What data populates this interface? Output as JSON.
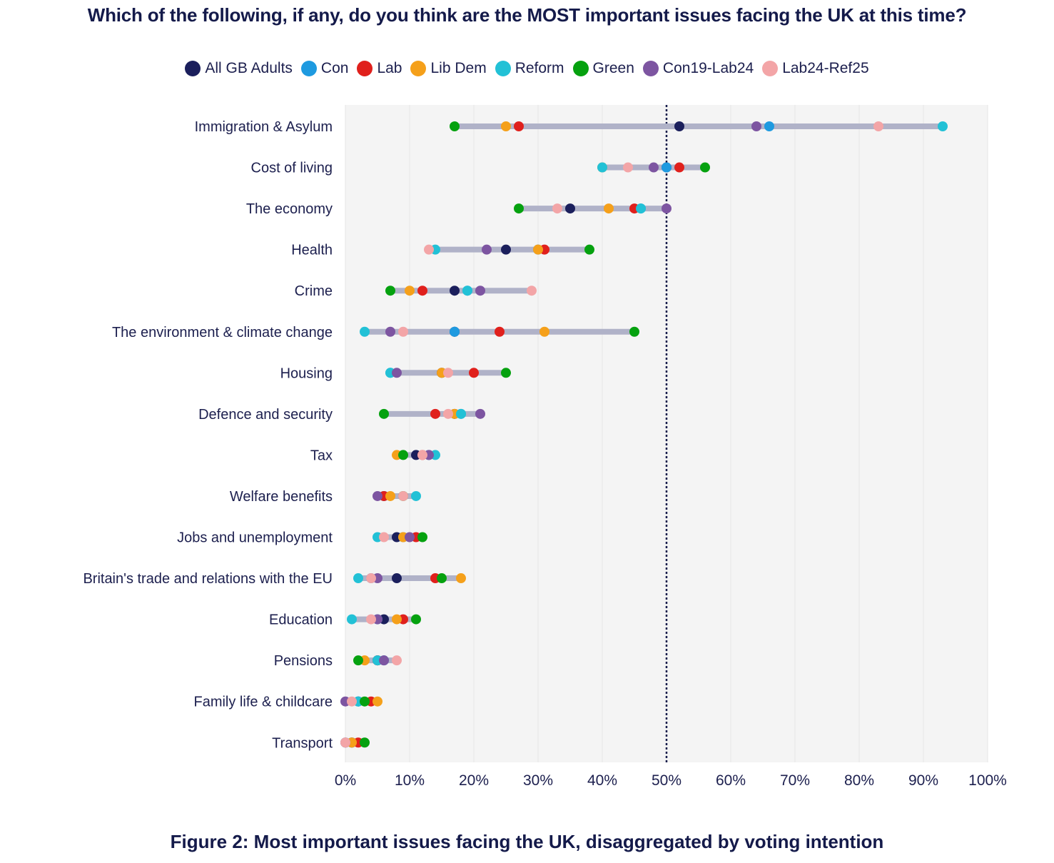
{
  "chart_data": {
    "type": "scatter",
    "title": "Which of the following, if any, do you think are the MOST important issues facing the UK at this time?",
    "caption": "Figure 2: Most important issues facing the UK, disaggregated by voting intention",
    "xlim": [
      0,
      100
    ],
    "xticks": [
      0,
      10,
      20,
      30,
      40,
      50,
      60,
      70,
      80,
      90,
      100
    ],
    "tick_format": "%",
    "reference_line": 50,
    "grid": true,
    "legend_position": "top",
    "series": [
      {
        "name": "All GB Adults",
        "color": "#1b1f5c"
      },
      {
        "name": "Con",
        "color": "#1e9ae0"
      },
      {
        "name": "Lab",
        "color": "#e0201c"
      },
      {
        "name": "Lib Dem",
        "color": "#f5a01a"
      },
      {
        "name": "Reform",
        "color": "#22c1d6"
      },
      {
        "name": "Green",
        "color": "#05a10f"
      },
      {
        "name": "Con19-Lab24",
        "color": "#7d55a1"
      },
      {
        "name": "Lab24-Ref25",
        "color": "#f3a5a7"
      }
    ],
    "categories": [
      "Immigration & Asylum",
      "Cost of living",
      "The economy",
      "Health",
      "Crime",
      "The environment & climate change",
      "Housing",
      "Defence and security",
      "Tax",
      "Welfare benefits",
      "Jobs and unemployment",
      "Britain's trade and relations with the EU",
      "Education",
      "Pensions",
      "Family life & childcare",
      "Transport"
    ],
    "values": {
      "All GB Adults": [
        52,
        50,
        35,
        25,
        17,
        17,
        15,
        17,
        11,
        6,
        8,
        8,
        6,
        5,
        2,
        1
      ],
      "Con": [
        66,
        50,
        46,
        30,
        19,
        17,
        7,
        18,
        13,
        6,
        9,
        4,
        5,
        6,
        2,
        1
      ],
      "Lab": [
        27,
        52,
        45,
        31,
        12,
        24,
        20,
        14,
        12,
        6,
        11,
        14,
        9,
        5,
        4,
        2
      ],
      "Lib Dem": [
        25,
        40,
        41,
        30,
        10,
        31,
        15,
        17,
        8,
        7,
        9,
        18,
        8,
        3,
        5,
        1
      ],
      "Reform": [
        93,
        40,
        46,
        14,
        19,
        3,
        7,
        18,
        14,
        11,
        5,
        2,
        1,
        5,
        2,
        0
      ],
      "Green": [
        17,
        56,
        27,
        38,
        7,
        45,
        25,
        6,
        9,
        9,
        12,
        15,
        11,
        2,
        3,
        3
      ],
      "Con19-Lab24": [
        64,
        48,
        50,
        22,
        21,
        7,
        8,
        21,
        13,
        5,
        10,
        5,
        5,
        6,
        0,
        0
      ],
      "Lab24-Ref25": [
        83,
        44,
        33,
        13,
        29,
        9,
        16,
        16,
        12,
        9,
        6,
        4,
        4,
        8,
        1,
        0
      ]
    }
  }
}
